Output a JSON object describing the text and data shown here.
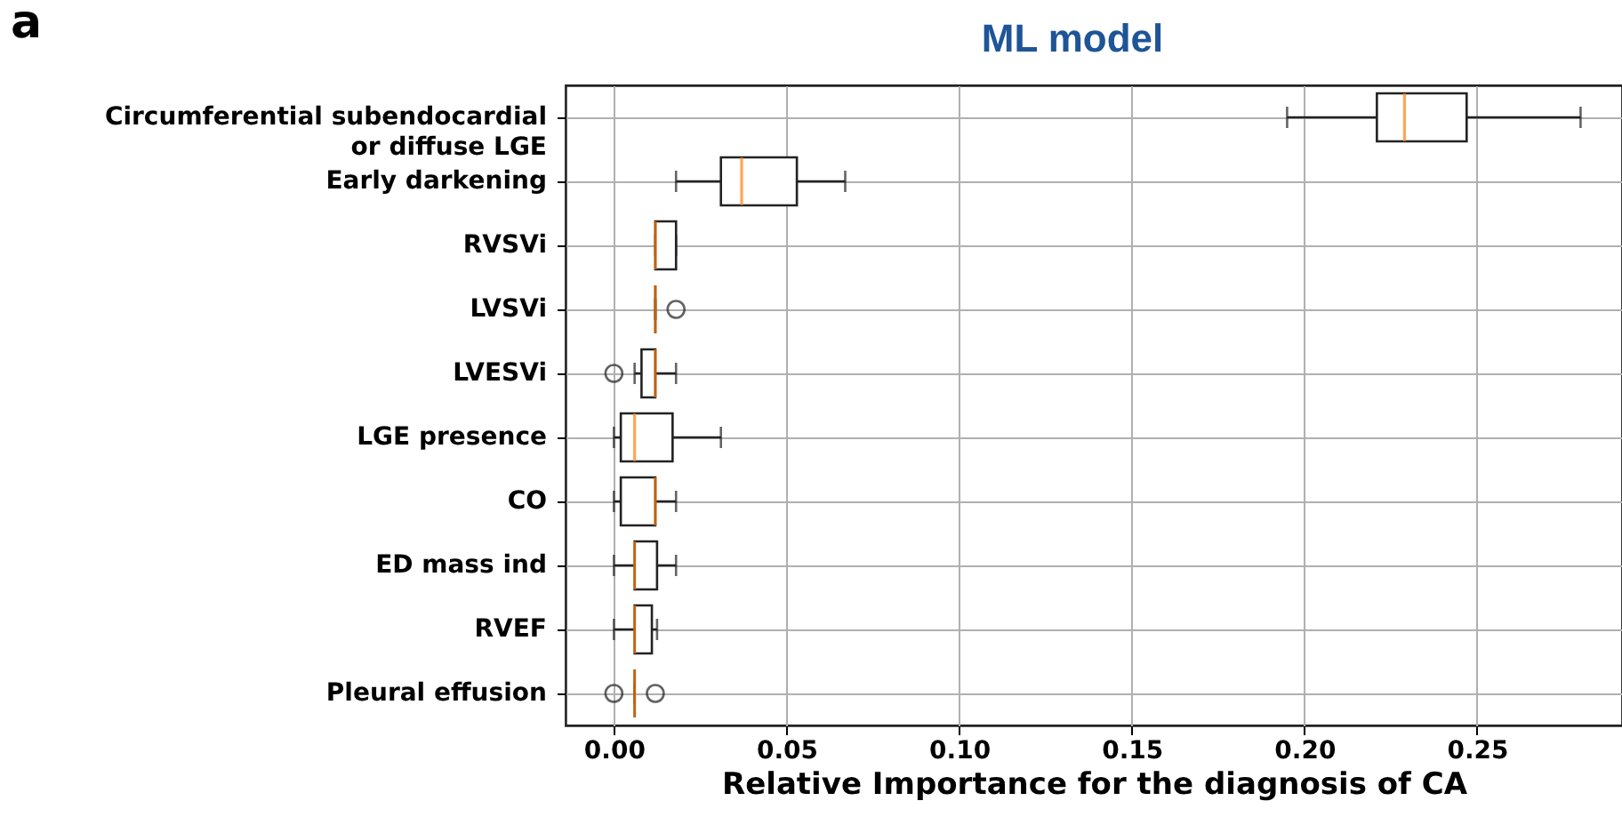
{
  "chart_data": {
    "type": "box",
    "orientation": "horizontal",
    "title": "ML model",
    "xlabel": "Relative Importance for the diagnosis of CA",
    "annotations": [
      "a"
    ],
    "categories": [
      "Circumferential subendocardial\nor diffuse LGE",
      "Early darkening",
      "RVSVi",
      "LVSVi",
      "LVESVi",
      "LGE presence",
      "CO",
      "ED mass ind",
      "RVEF",
      "Pleural effusion"
    ],
    "boxes": [
      {
        "low": 0.195,
        "q1": 0.221,
        "median": 0.229,
        "q3": 0.247,
        "high": 0.28
      },
      {
        "low": 0.018,
        "q1": 0.031,
        "median": 0.037,
        "q3": 0.053,
        "high": 0.067
      },
      {
        "low": 0.012,
        "q1": 0.012,
        "median": 0.012,
        "q3": 0.018,
        "high": 0.018
      },
      {
        "low": 0.012,
        "q1": 0.012,
        "median": 0.012,
        "q3": 0.012,
        "high": 0.012,
        "outliers": [
          0.018
        ]
      },
      {
        "low": 0.006,
        "q1": 0.008,
        "median": 0.012,
        "q3": 0.012,
        "high": 0.018,
        "outliers": [
          0
        ]
      },
      {
        "low": 0,
        "q1": 0.002,
        "median": 0.006,
        "q3": 0.017,
        "high": 0.031
      },
      {
        "low": 0,
        "q1": 0.002,
        "median": 0.012,
        "q3": 0.012,
        "high": 0.018
      },
      {
        "low": 0,
        "q1": 0.006,
        "median": 0.006,
        "q3": 0.0125,
        "high": 0.018
      },
      {
        "low": 0,
        "q1": 0.006,
        "median": 0.006,
        "q3": 0.011,
        "high": 0.0125
      },
      {
        "low": 0.006,
        "q1": 0.006,
        "median": 0.006,
        "q3": 0.006,
        "high": 0.006,
        "outliers": [
          0,
          0.012
        ]
      }
    ],
    "xlim": [
      -0.014,
      0.292
    ],
    "xticks": [
      {
        "value": 0,
        "label": "0.00"
      },
      {
        "value": 0.05,
        "label": "0.05"
      },
      {
        "value": 0.1,
        "label": "0.10"
      },
      {
        "value": 0.15,
        "label": "0.15"
      },
      {
        "value": 0.2,
        "label": "0.20"
      },
      {
        "value": 0.25,
        "label": "0.25"
      }
    ],
    "grid": true
  }
}
